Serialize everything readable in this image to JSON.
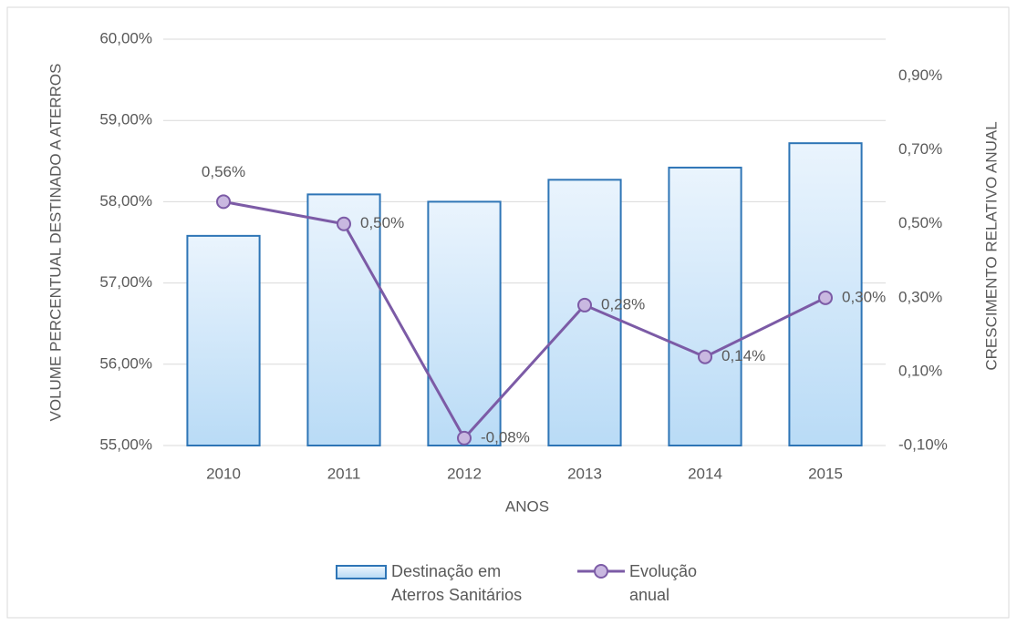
{
  "chart_data": {
    "type": "bar-line",
    "xlabel": "ANOS",
    "ylabel": "VOLUME PERCENTUAL DESTINADO A ATERROS",
    "y2label": "CRESCIMENTO RELATIVO ANUAL",
    "categories": [
      "2010",
      "2011",
      "2012",
      "2013",
      "2014",
      "2015"
    ],
    "series": [
      {
        "name": "Destinação em Aterros Sanitários",
        "type": "bar",
        "color": "#2e75b6",
        "values": [
          57.58,
          58.09,
          58.0,
          58.27,
          58.42,
          58.72
        ]
      },
      {
        "name": "Evolução anual",
        "type": "line",
        "axis": "y2",
        "color": "#7c5ba6",
        "values": [
          0.56,
          0.5,
          -0.08,
          0.28,
          0.14,
          0.3
        ],
        "value_labels": [
          "0,56%",
          "0,50%",
          "-0,08%",
          "0,28%",
          "0,14%",
          "0,30%"
        ]
      }
    ],
    "ylim": [
      55,
      60
    ],
    "yticks": [
      {
        "value": 55,
        "label": "55,00%"
      },
      {
        "value": 56,
        "label": "56,00%"
      },
      {
        "value": 57,
        "label": "57,00%"
      },
      {
        "value": 58,
        "label": "58,00%"
      },
      {
        "value": 59,
        "label": "59,00%"
      },
      {
        "value": 60,
        "label": "60,00%"
      }
    ],
    "y2lim": [
      -0.1,
      1.0
    ],
    "y2ticks": [
      {
        "value": -0.1,
        "label": "-0,10%"
      },
      {
        "value": 0.1,
        "label": "0,10%"
      },
      {
        "value": 0.3,
        "label": "0,30%"
      },
      {
        "value": 0.5,
        "label": "0,50%"
      },
      {
        "value": 0.7,
        "label": "0,70%"
      },
      {
        "value": 0.9,
        "label": "0,90%"
      }
    ],
    "grid": true
  }
}
